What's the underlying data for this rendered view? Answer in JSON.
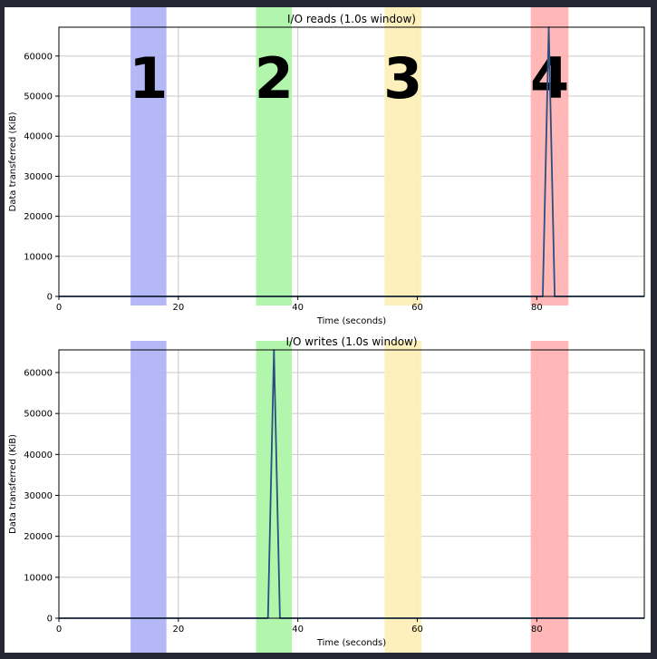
{
  "chart_data": [
    {
      "type": "line",
      "title": "I/O reads (1.0s window)",
      "xlabel": "Time (seconds)",
      "ylabel": "Data transferred (KiB)",
      "xlim": [
        0,
        98
      ],
      "ylim": [
        0,
        67200
      ],
      "xticks": [
        0,
        20,
        40,
        60,
        80
      ],
      "yticks": [
        0,
        10000,
        20000,
        30000,
        40000,
        50000,
        60000
      ],
      "xtick_labels": [
        "0",
        "20",
        "40",
        "60",
        "80"
      ],
      "ytick_labels": [
        "0",
        "10000",
        "20000",
        "30000",
        "40000",
        "50000",
        "60000"
      ],
      "grid": true,
      "line_color": "#2b4f7e",
      "series": [
        {
          "x": [
            0,
            81,
            82,
            83,
            98
          ],
          "y": [
            0,
            0,
            67200,
            0,
            0
          ]
        }
      ],
      "bands": [
        {
          "label": "1",
          "x0": 12,
          "x1": 18,
          "color": "#b0b4f6"
        },
        {
          "label": "2",
          "x0": 33,
          "x1": 39,
          "color": "#aef5aa"
        },
        {
          "label": "3",
          "x0": 54.5,
          "x1": 60.7,
          "color": "#fdefb8"
        },
        {
          "label": "4",
          "x0": 79,
          "x1": 85.3,
          "color": "#ffb3b3"
        }
      ]
    },
    {
      "type": "line",
      "title": "I/O writes (1.0s window)",
      "xlabel": "Time (seconds)",
      "ylabel": "Data transferred (KiB)",
      "xlim": [
        0,
        98
      ],
      "ylim": [
        0,
        65536
      ],
      "xticks": [
        0,
        20,
        40,
        60,
        80
      ],
      "yticks": [
        0,
        10000,
        20000,
        30000,
        40000,
        50000,
        60000
      ],
      "xtick_labels": [
        "0",
        "20",
        "40",
        "60",
        "80"
      ],
      "ytick_labels": [
        "0",
        "10000",
        "20000",
        "30000",
        "40000",
        "50000",
        "60000"
      ],
      "grid": true,
      "line_color": "#2b4f7e",
      "series": [
        {
          "x": [
            0,
            35,
            36,
            37,
            98
          ],
          "y": [
            0,
            0,
            65536,
            0,
            0
          ]
        }
      ],
      "bands": [
        {
          "label": "",
          "x0": 12,
          "x1": 18,
          "color": "#b0b4f6"
        },
        {
          "label": "",
          "x0": 33,
          "x1": 39,
          "color": "#aef5aa"
        },
        {
          "label": "",
          "x0": 54.5,
          "x1": 60.7,
          "color": "#fdefb8"
        },
        {
          "label": "",
          "x0": 79,
          "x1": 85.3,
          "color": "#ffb3b3"
        }
      ]
    }
  ]
}
